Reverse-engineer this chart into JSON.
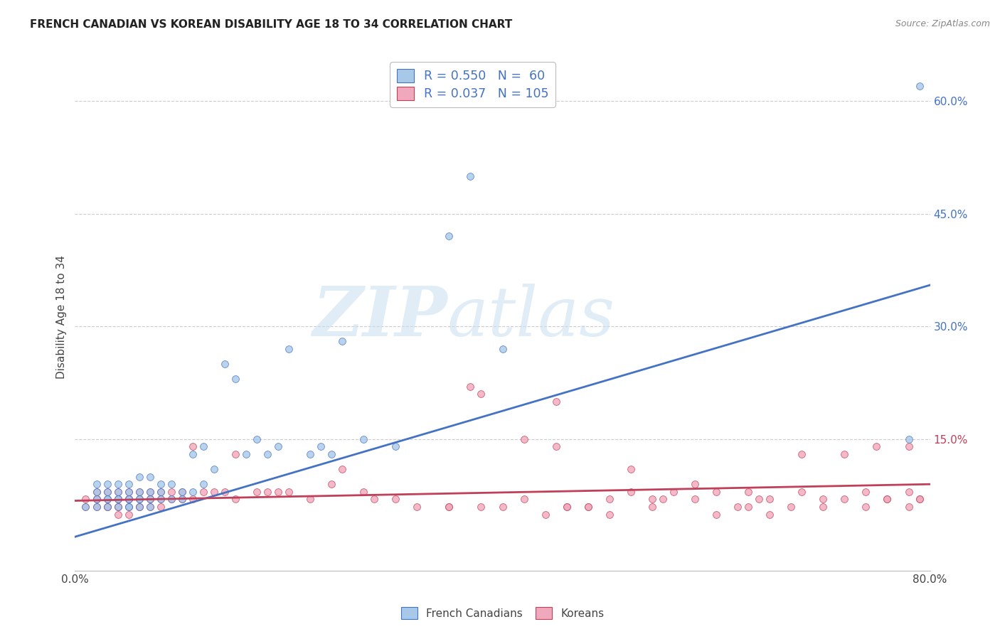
{
  "title": "FRENCH CANADIAN VS KOREAN DISABILITY AGE 18 TO 34 CORRELATION CHART",
  "source": "Source: ZipAtlas.com",
  "ylabel": "Disability Age 18 to 34",
  "xlim": [
    0.0,
    0.8
  ],
  "ylim": [
    -0.025,
    0.65
  ],
  "legend_r1": "R = 0.550",
  "legend_n1": "N =  60",
  "legend_r2": "R = 0.037",
  "legend_n2": "N = 105",
  "fc_color": "#a8c8e8",
  "ko_color": "#f0a8bc",
  "fc_line_color": "#4472c4",
  "ko_line_color": "#c0405a",
  "fc_trend_start_x": 0.0,
  "fc_trend_start_y": 0.02,
  "fc_trend_end_x": 0.8,
  "fc_trend_end_y": 0.355,
  "ko_trend_start_x": 0.0,
  "ko_trend_start_y": 0.068,
  "ko_trend_end_x": 0.8,
  "ko_trend_end_y": 0.09,
  "fc_points_x": [
    0.01,
    0.02,
    0.02,
    0.02,
    0.02,
    0.03,
    0.03,
    0.03,
    0.03,
    0.03,
    0.04,
    0.04,
    0.04,
    0.04,
    0.04,
    0.05,
    0.05,
    0.05,
    0.05,
    0.05,
    0.05,
    0.06,
    0.06,
    0.06,
    0.06,
    0.06,
    0.07,
    0.07,
    0.07,
    0.07,
    0.08,
    0.08,
    0.08,
    0.09,
    0.09,
    0.1,
    0.1,
    0.11,
    0.11,
    0.12,
    0.12,
    0.13,
    0.14,
    0.15,
    0.16,
    0.17,
    0.18,
    0.19,
    0.2,
    0.22,
    0.23,
    0.24,
    0.25,
    0.27,
    0.3,
    0.35,
    0.37,
    0.4,
    0.78,
    0.79
  ],
  "fc_points_y": [
    0.06,
    0.06,
    0.07,
    0.08,
    0.09,
    0.06,
    0.07,
    0.07,
    0.08,
    0.09,
    0.06,
    0.07,
    0.07,
    0.08,
    0.09,
    0.06,
    0.06,
    0.07,
    0.07,
    0.08,
    0.09,
    0.06,
    0.07,
    0.07,
    0.08,
    0.1,
    0.06,
    0.07,
    0.08,
    0.1,
    0.07,
    0.08,
    0.09,
    0.07,
    0.09,
    0.07,
    0.08,
    0.08,
    0.13,
    0.09,
    0.14,
    0.11,
    0.25,
    0.23,
    0.13,
    0.15,
    0.13,
    0.14,
    0.27,
    0.13,
    0.14,
    0.13,
    0.28,
    0.15,
    0.14,
    0.42,
    0.5,
    0.27,
    0.15,
    0.62
  ],
  "ko_points_x": [
    0.01,
    0.01,
    0.02,
    0.02,
    0.02,
    0.02,
    0.03,
    0.03,
    0.03,
    0.03,
    0.04,
    0.04,
    0.04,
    0.04,
    0.04,
    0.04,
    0.05,
    0.05,
    0.05,
    0.05,
    0.05,
    0.05,
    0.06,
    0.06,
    0.06,
    0.06,
    0.07,
    0.07,
    0.07,
    0.07,
    0.08,
    0.08,
    0.08,
    0.09,
    0.09,
    0.1,
    0.1,
    0.11,
    0.11,
    0.12,
    0.13,
    0.14,
    0.15,
    0.15,
    0.17,
    0.18,
    0.19,
    0.2,
    0.22,
    0.24,
    0.25,
    0.27,
    0.28,
    0.3,
    0.32,
    0.35,
    0.37,
    0.38,
    0.4,
    0.42,
    0.44,
    0.45,
    0.46,
    0.48,
    0.5,
    0.52,
    0.54,
    0.56,
    0.58,
    0.6,
    0.62,
    0.63,
    0.64,
    0.65,
    0.67,
    0.68,
    0.7,
    0.72,
    0.74,
    0.75,
    0.76,
    0.78,
    0.78,
    0.79,
    0.79,
    0.45,
    0.48,
    0.52,
    0.55,
    0.58,
    0.6,
    0.63,
    0.65,
    0.68,
    0.7,
    0.72,
    0.74,
    0.76,
    0.78,
    0.35,
    0.38,
    0.42,
    0.46,
    0.5,
    0.54
  ],
  "ko_points_y": [
    0.06,
    0.07,
    0.06,
    0.07,
    0.07,
    0.08,
    0.06,
    0.06,
    0.07,
    0.08,
    0.05,
    0.06,
    0.06,
    0.07,
    0.07,
    0.08,
    0.05,
    0.06,
    0.07,
    0.07,
    0.07,
    0.08,
    0.06,
    0.06,
    0.07,
    0.08,
    0.06,
    0.07,
    0.07,
    0.08,
    0.06,
    0.07,
    0.08,
    0.07,
    0.08,
    0.07,
    0.08,
    0.07,
    0.14,
    0.08,
    0.08,
    0.08,
    0.07,
    0.13,
    0.08,
    0.08,
    0.08,
    0.08,
    0.07,
    0.09,
    0.11,
    0.08,
    0.07,
    0.07,
    0.06,
    0.06,
    0.22,
    0.21,
    0.06,
    0.15,
    0.05,
    0.2,
    0.06,
    0.06,
    0.05,
    0.08,
    0.07,
    0.08,
    0.07,
    0.05,
    0.06,
    0.06,
    0.07,
    0.05,
    0.06,
    0.13,
    0.06,
    0.07,
    0.06,
    0.14,
    0.07,
    0.08,
    0.06,
    0.07,
    0.07,
    0.14,
    0.06,
    0.11,
    0.07,
    0.09,
    0.08,
    0.08,
    0.07,
    0.08,
    0.07,
    0.13,
    0.08,
    0.07,
    0.14,
    0.06,
    0.06,
    0.07,
    0.06,
    0.07,
    0.06
  ]
}
